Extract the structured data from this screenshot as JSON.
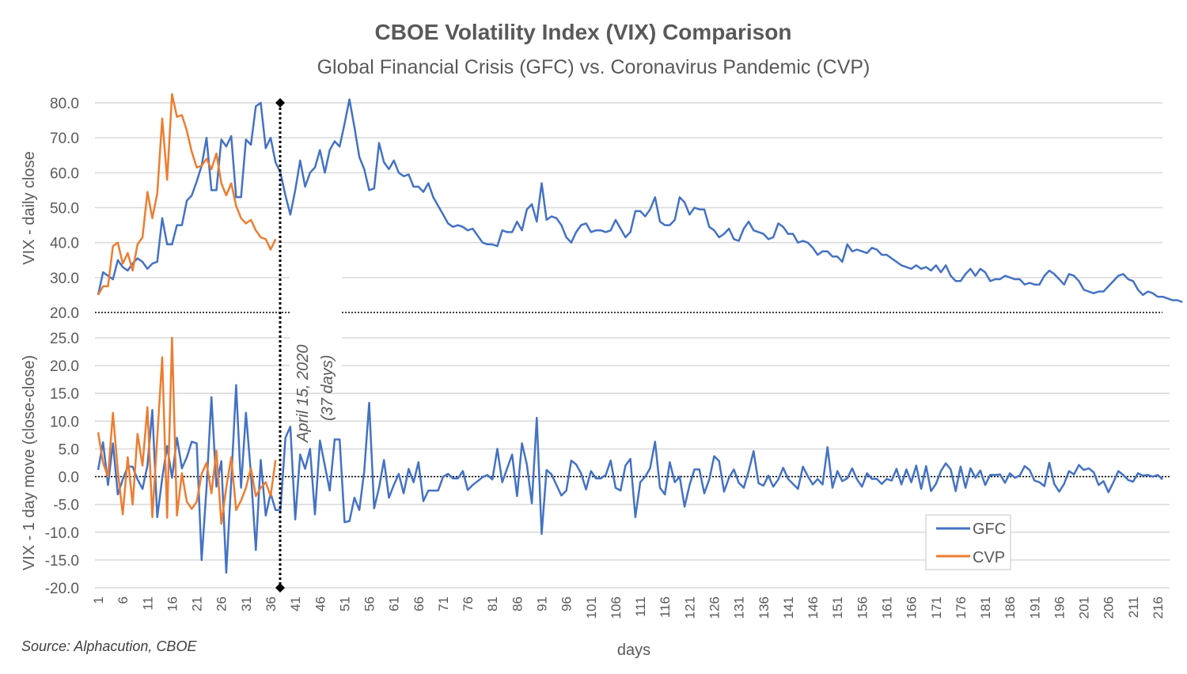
{
  "chart_data": {
    "type": "line",
    "title": "CBOE Volatility Index (VIX) Comparison",
    "subtitle": "Global Financial Crisis (GFC) vs. Coronavirus Pandemic (CVP)",
    "xlabel": "days",
    "source": "Source: Alphacution, CBOE",
    "annotation": {
      "line1": "April 15, 2020",
      "line2": "(37 days)",
      "day": 38
    },
    "colors": {
      "GFC": "#4472c4",
      "CVP": "#ed7d31",
      "grid": "#d9d9d9",
      "text": "#595959"
    },
    "legend": {
      "position": "bottom-right",
      "entries": [
        "GFC",
        "CVP"
      ]
    },
    "x_ticks": [
      "1",
      "6",
      "11",
      "16",
      "21",
      "26",
      "31",
      "36",
      "41",
      "46",
      "51",
      "56",
      "61",
      "66",
      "71",
      "76",
      "81",
      "86",
      "91",
      "96",
      "101",
      "106",
      "111",
      "116",
      "121",
      "126",
      "131",
      "136",
      "141",
      "146",
      "151",
      "156",
      "161",
      "166",
      "171",
      "176",
      "181",
      "186",
      "191",
      "196",
      "201",
      "206",
      "211",
      "216"
    ],
    "panels": [
      {
        "name": "daily_close",
        "ylabel": "VIX - daily close",
        "ylim": [
          20,
          80
        ],
        "y_ticks": [
          "20.0",
          "30.0",
          "40.0",
          "50.0",
          "60.0",
          "70.0",
          "80.0"
        ],
        "series": [
          {
            "name": "GFC",
            "values": [
              25,
              31.5,
              30.5,
              29.5,
              35,
              33,
              32,
              34,
              35.5,
              34.5,
              32.5,
              34,
              34.5,
              47,
              39.5,
              39.5,
              45,
              45,
              52,
              53.5,
              57.5,
              62,
              70,
              55,
              55,
              69.5,
              67.5,
              70.5,
              53,
              53,
              69.5,
              68,
              79,
              80,
              67,
              70,
              63,
              60,
              53.5,
              48,
              55,
              63.5,
              56,
              60,
              61.5,
              66.5,
              60,
              66.5,
              69,
              67.5,
              74,
              81,
              73,
              64.5,
              61,
              55,
              55.5,
              68.5,
              63,
              61,
              63.5,
              60,
              59,
              59.5,
              56,
              56,
              54.5,
              57,
              53,
              50.5,
              48,
              45.5,
              44.5,
              45,
              44.5,
              43.5,
              44,
              42,
              40,
              39.5,
              39.5,
              39,
              43.5,
              43,
              43,
              46,
              43.5,
              49.5,
              51,
              46,
              57,
              46.5,
              47.5,
              47,
              45,
              41.5,
              40,
              43,
              45,
              45.5,
              43,
              43.5,
              43.5,
              43,
              43.5,
              46.5,
              44,
              41.5,
              43,
              49,
              49,
              47.5,
              49.5,
              53,
              46,
              45,
              45,
              46.5,
              53,
              51.5,
              48,
              50,
              49.5,
              49.5,
              44.5,
              43.5,
              41.5,
              42.5,
              44,
              41,
              40.5,
              44,
              46,
              43.5,
              43,
              42.5,
              41,
              41.5,
              45.5,
              44.5,
              42.5,
              42.5,
              40,
              40.5,
              40,
              38.5,
              36.5,
              37.5,
              37.5,
              36,
              36,
              34.5,
              39.5,
              37.5,
              38,
              37.5,
              37,
              38.5,
              38,
              36.5,
              36.5,
              35.5,
              34.5,
              33.5,
              33,
              32.5,
              33.5,
              32.5,
              33,
              32,
              33.5,
              31.5,
              33.5,
              30.5,
              29,
              29,
              31,
              32.5,
              30.5,
              32.5,
              31.5,
              29,
              29.5,
              29.5,
              30.5,
              30,
              29.5,
              29.5,
              28,
              28.5,
              28,
              28,
              30.5,
              32,
              31,
              29.5,
              28,
              31,
              30.5,
              29,
              26.5,
              26,
              25.5,
              26,
              26,
              27.5,
              29,
              30.5,
              31,
              29.5,
              29,
              26.5,
              25,
              26,
              25.5,
              24.5,
              24.5,
              24,
              23.5,
              23.5,
              23
            ]
          },
          {
            "name": "CVP",
            "values": [
              25,
              27.5,
              27.5,
              39,
              40,
              34,
              37,
              32,
              39.5,
              41.5,
              54.5,
              47,
              54,
              75.5,
              58,
              82.5,
              76,
              76.5,
              72,
              66,
              61.5,
              62,
              64,
              61,
              65.5,
              57,
              53.5,
              57,
              50.5,
              47,
              45.5,
              46.5,
              43.5,
              41.5,
              41,
              38,
              41
            ]
          }
        ]
      },
      {
        "name": "one_day_move",
        "ylabel": "VIX - 1 day move (close-close)",
        "ylim": [
          -20,
          25
        ],
        "y_ticks": [
          "-20.0",
          "-15.0",
          "-10.0",
          "-5.0",
          "0.0",
          "5.0",
          "10.0",
          "15.0",
          "20.0",
          "25.0"
        ],
        "series": [
          {
            "name": "GFC",
            "values": [
              1.2,
              6.2,
              -1.5,
              6,
              -3.2,
              -0.5,
              1.8,
              1.8,
              -0.5,
              -2.2,
              2,
              12,
              -7.3,
              -0.3,
              5.5,
              -0.2,
              7,
              1.5,
              3.5,
              6.3,
              6,
              -15,
              -2,
              14.3,
              -1.8,
              2.8,
              -17.3,
              -0.8,
              16.5,
              -2,
              11.5,
              0.5,
              -13.2,
              3,
              -7,
              -3,
              -6,
              -6,
              7,
              9,
              -7.7,
              4,
              1.4,
              5,
              -6.8,
              6.5,
              2,
              -2.5,
              6.7,
              6.7,
              -8.2,
              -8,
              -3.8,
              -6,
              1,
              13.3,
              -5.7,
              -2,
              3,
              -3.8,
              -1.5,
              0.5,
              -3,
              1.4,
              -1,
              2.6,
              -4.4,
              -2.5,
              -2.5,
              -2.5,
              0,
              0.5,
              -0.3,
              -0.3,
              1,
              -2.4,
              -1.5,
              -0.8,
              -0.1,
              0.3,
              -0.5,
              5,
              -1,
              1.5,
              4,
              -3.5,
              6,
              2.2,
              -4.8,
              10.6,
              -10.3,
              1.2,
              0.4,
              -1.5,
              -3.4,
              -2.5,
              2.9,
              2.2,
              0.6,
              -2.3,
              1,
              -0.3,
              -0.3,
              0.3,
              2.9,
              -2,
              -2.5,
              2,
              3.2,
              -7.3,
              -1,
              0,
              1.5,
              6.3,
              -2,
              -3.2,
              2.6,
              -1,
              0,
              -5.4,
              -1.5,
              1.3,
              1.3,
              -3,
              -0.5,
              3.7,
              2.8,
              -2.7,
              -0.2,
              1.3,
              -1.1,
              -2,
              1,
              4.6,
              -1.2,
              -1.6,
              0.2,
              -1.8,
              -0.5,
              1.6,
              -0.4,
              -1.3,
              -2.2,
              1.8,
              0.1,
              -1.4,
              -0.4,
              -1.4,
              5.3,
              -2,
              1,
              -0.8,
              -0.3,
              1.5,
              -0.5,
              -1.8,
              0.6,
              -0.4,
              -0.4,
              -1.3,
              -0.4,
              -0.7,
              1.4,
              -1.4,
              1.3,
              -1,
              2,
              -2.2,
              1.9,
              -2.6,
              -1.3,
              1,
              2.4,
              1.3,
              -2.6,
              1.8,
              -2,
              1.5,
              -0.2,
              1.1,
              -1.5,
              0.3,
              0.3,
              0.4,
              -1.1,
              0.6,
              -0.2,
              0.2,
              1.9,
              1.2,
              -0.7,
              -1,
              -1.7,
              2.5,
              -1.3,
              -2.7,
              -1.3,
              1,
              0.4,
              2.1,
              1.2,
              1.5,
              0.8,
              -1.5,
              -0.8,
              -2.8,
              -1,
              1,
              0.3,
              -0.6,
              -0.9,
              0.6,
              0.2,
              0.3,
              0,
              0.3,
              -0.5
            ]
          },
          {
            "name": "CVP",
            "values": [
              8,
              2.5,
              0,
              11.5,
              1,
              -6.8,
              3.5,
              -5,
              7.7,
              2,
              12.5,
              -7.3,
              7,
              21.5,
              -7.4,
              25,
              -7,
              0.6,
              -4.5,
              -5.8,
              -4.5,
              0.5,
              2.5,
              -3,
              4.7,
              -8.5,
              -2,
              3.5,
              -6,
              -4.3,
              -2,
              1.5,
              -3.5,
              -2,
              -1,
              -3.5,
              3
            ]
          }
        ]
      }
    ]
  }
}
